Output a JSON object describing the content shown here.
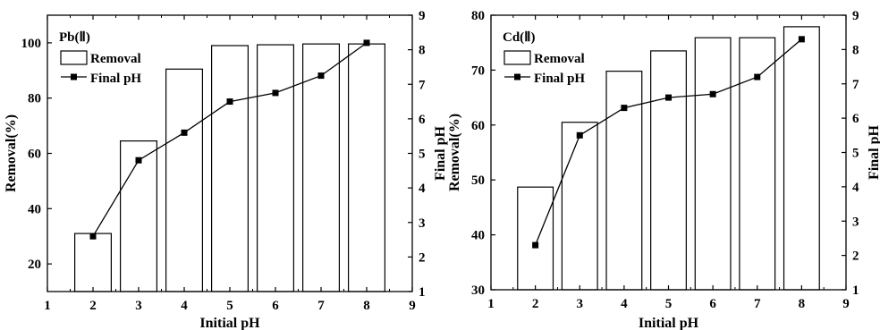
{
  "chart_data": [
    {
      "type": "bar",
      "title": "Pb(Ⅱ)",
      "xlabel": "Initial pH",
      "ylabel": "Removal(%)",
      "y2label": "Final pH",
      "xlim": [
        1,
        9
      ],
      "ylim": [
        10,
        110
      ],
      "y2lim": [
        1,
        9
      ],
      "x_ticks": [
        1,
        2,
        3,
        4,
        5,
        6,
        7,
        8,
        9
      ],
      "y_ticks": [
        20,
        40,
        60,
        80,
        100
      ],
      "y2_ticks": [
        1,
        2,
        3,
        4,
        5,
        6,
        7,
        8,
        9
      ],
      "legend": {
        "placement": "top-left",
        "entries": [
          "Removal",
          "Final pH"
        ]
      },
      "grid": false,
      "series": [
        {
          "name": "Removal",
          "type": "bar",
          "axis": "left",
          "x": [
            2,
            3,
            4,
            5,
            6,
            7,
            8
          ],
          "values": [
            31,
            64.5,
            90.5,
            99,
            99.3,
            99.6,
            99.6
          ]
        },
        {
          "name": "Final pH",
          "type": "line",
          "axis": "right",
          "x": [
            2,
            3,
            4,
            5,
            6,
            7,
            8
          ],
          "values": [
            2.6,
            4.8,
            5.6,
            6.5,
            6.75,
            7.25,
            8.2
          ]
        }
      ]
    },
    {
      "type": "bar",
      "title": "Cd(Ⅱ)",
      "xlabel": "Initial pH",
      "ylabel": "Removal(%)",
      "y2label": "Final pH",
      "xlim": [
        1,
        9
      ],
      "ylim": [
        30,
        80
      ],
      "y2lim": [
        1,
        9
      ],
      "x_ticks": [
        1,
        2,
        3,
        4,
        5,
        6,
        7,
        8,
        9
      ],
      "y_ticks": [
        30,
        40,
        50,
        60,
        70,
        80
      ],
      "y2_ticks": [
        1,
        2,
        3,
        4,
        5,
        6,
        7,
        8,
        9
      ],
      "legend": {
        "placement": "top-left",
        "entries": [
          "Removal",
          "Final pH"
        ]
      },
      "grid": false,
      "series": [
        {
          "name": "Removal",
          "type": "bar",
          "axis": "left",
          "x": [
            2,
            3,
            4,
            5,
            6,
            7,
            8
          ],
          "values": [
            48.7,
            60.5,
            69.8,
            73.5,
            75.9,
            75.9,
            77.9
          ]
        },
        {
          "name": "Final pH",
          "type": "line",
          "axis": "right",
          "x": [
            2,
            3,
            4,
            5,
            6,
            7,
            8
          ],
          "values": [
            2.3,
            5.5,
            6.3,
            6.6,
            6.7,
            7.2,
            8.3
          ]
        }
      ]
    }
  ]
}
